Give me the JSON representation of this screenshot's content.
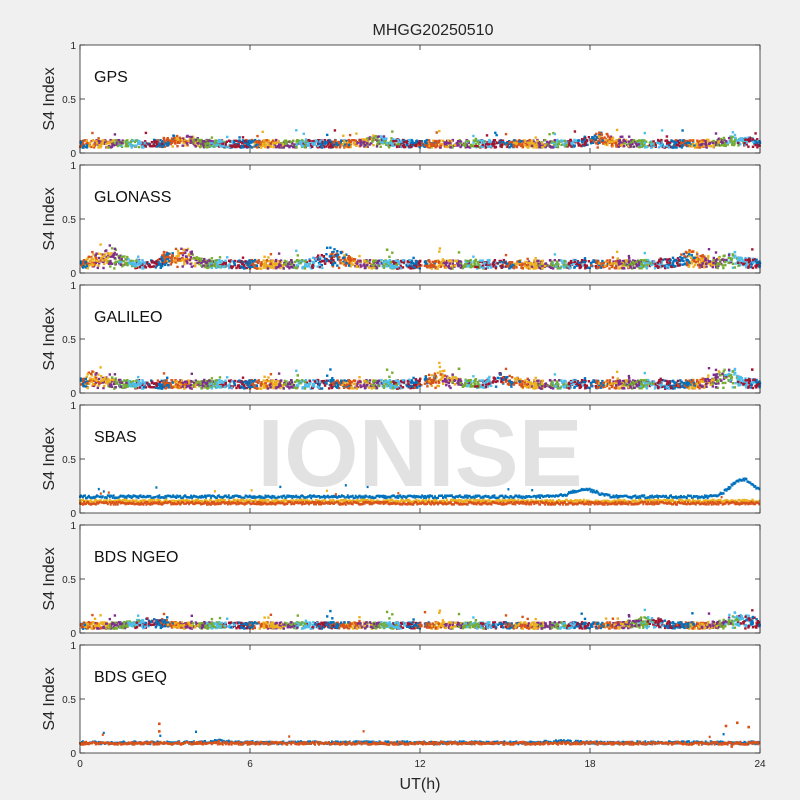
{
  "title": "MHGG20250510",
  "watermark": "IONISE",
  "colors": {
    "background": "#f0f0f0",
    "axes_bg": "#ffffff",
    "axis": "#262626",
    "series": [
      "#0072BD",
      "#D95319",
      "#EDB120",
      "#7E2F8E",
      "#77AC30",
      "#4DBEEE",
      "#A2142F"
    ]
  },
  "chart_data": [
    {
      "type": "scatter",
      "label": "GPS",
      "ylabel": "S4 Index",
      "xlim": [
        0,
        24
      ],
      "ylim": [
        0,
        1
      ],
      "yticks": [
        "0",
        "0.5",
        "1"
      ],
      "xticks": [],
      "series_colors": [
        "#0072BD",
        "#D95319",
        "#EDB120",
        "#7E2F8E",
        "#77AC30",
        "#4DBEEE",
        "#A2142F"
      ],
      "baseline_range": [
        0.05,
        0.12
      ],
      "bumps": [
        [
          3.5,
          0.07
        ],
        [
          10.5,
          0.05
        ],
        [
          18.4,
          0.08
        ],
        [
          23.2,
          0.05
        ]
      ]
    },
    {
      "type": "scatter",
      "label": "GLONASS",
      "ylabel": "S4 Index",
      "xlim": [
        0,
        24
      ],
      "ylim": [
        0,
        1
      ],
      "yticks": [
        "0",
        "0.5",
        "1"
      ],
      "xticks": [],
      "series_colors": [
        "#0072BD",
        "#D95319",
        "#EDB120",
        "#7E2F8E",
        "#77AC30",
        "#4DBEEE",
        "#A2142F"
      ],
      "baseline_range": [
        0.04,
        0.12
      ],
      "bumps": [
        [
          1.0,
          0.12
        ],
        [
          3.5,
          0.15
        ],
        [
          9.0,
          0.12
        ],
        [
          21.5,
          0.1
        ],
        [
          23.0,
          0.08
        ]
      ]
    },
    {
      "type": "scatter",
      "label": "GALILEO",
      "ylabel": "S4 Index",
      "xlim": [
        0,
        24
      ],
      "ylim": [
        0,
        1
      ],
      "yticks": [
        "0",
        "0.5",
        "1"
      ],
      "xticks": [],
      "series_colors": [
        "#0072BD",
        "#D95319",
        "#EDB120",
        "#7E2F8E",
        "#77AC30",
        "#4DBEEE",
        "#A2142F"
      ],
      "baseline_range": [
        0.04,
        0.12
      ],
      "bumps": [
        [
          0.5,
          0.08
        ],
        [
          12.7,
          0.12
        ],
        [
          15.0,
          0.08
        ],
        [
          22.8,
          0.14
        ]
      ]
    },
    {
      "type": "scatter",
      "label": "SBAS",
      "ylabel": "S4 Index",
      "xlim": [
        0,
        24
      ],
      "ylim": [
        0,
        1
      ],
      "yticks": [
        "0",
        "0.5",
        "1"
      ],
      "xticks": [],
      "series_colors": [
        "#0072BD",
        "#EDB120",
        "#D95319"
      ],
      "lines": [
        {
          "base": 0.15,
          "bumps": [
            [
              17.8,
              0.07
            ],
            [
              23.4,
              0.16
            ]
          ]
        },
        {
          "base": 0.11,
          "bumps": []
        },
        {
          "base": 0.09,
          "bumps": []
        }
      ]
    },
    {
      "type": "scatter",
      "label": "BDS NGEO",
      "ylabel": "S4 Index",
      "xlim": [
        0,
        24
      ],
      "ylim": [
        0,
        1
      ],
      "yticks": [
        "0",
        "0.5",
        "1"
      ],
      "xticks": [],
      "series_colors": [
        "#0072BD",
        "#D95319",
        "#EDB120",
        "#7E2F8E",
        "#77AC30",
        "#4DBEEE",
        "#A2142F"
      ],
      "baseline_range": [
        0.04,
        0.1
      ],
      "bumps": [
        [
          2.5,
          0.06
        ],
        [
          20.0,
          0.06
        ],
        [
          23.3,
          0.1
        ]
      ]
    },
    {
      "type": "scatter",
      "label": "BDS GEQ",
      "ylabel": "S4 Index",
      "xlabel": "UT(h)",
      "xlim": [
        0,
        24
      ],
      "ylim": [
        0,
        1
      ],
      "yticks": [
        "0",
        "0.5",
        "1"
      ],
      "xticks": [
        "0",
        "6",
        "12",
        "18",
        "24"
      ],
      "series_colors": [
        "#0072BD",
        "#D95319"
      ],
      "lines": [
        {
          "base": 0.095,
          "bumps": [
            [
              5.0,
              0.015
            ],
            [
              17.0,
              0.01
            ]
          ]
        },
        {
          "base": 0.09,
          "bumps": []
        }
      ],
      "outliers": [
        [
          2.8,
          0.27
        ],
        [
          2.8,
          0.2
        ],
        [
          22.8,
          0.25
        ],
        [
          23.2,
          0.28
        ],
        [
          23.6,
          0.24
        ],
        [
          4.9,
          0.11
        ],
        [
          23.0,
          0.06
        ]
      ]
    }
  ]
}
